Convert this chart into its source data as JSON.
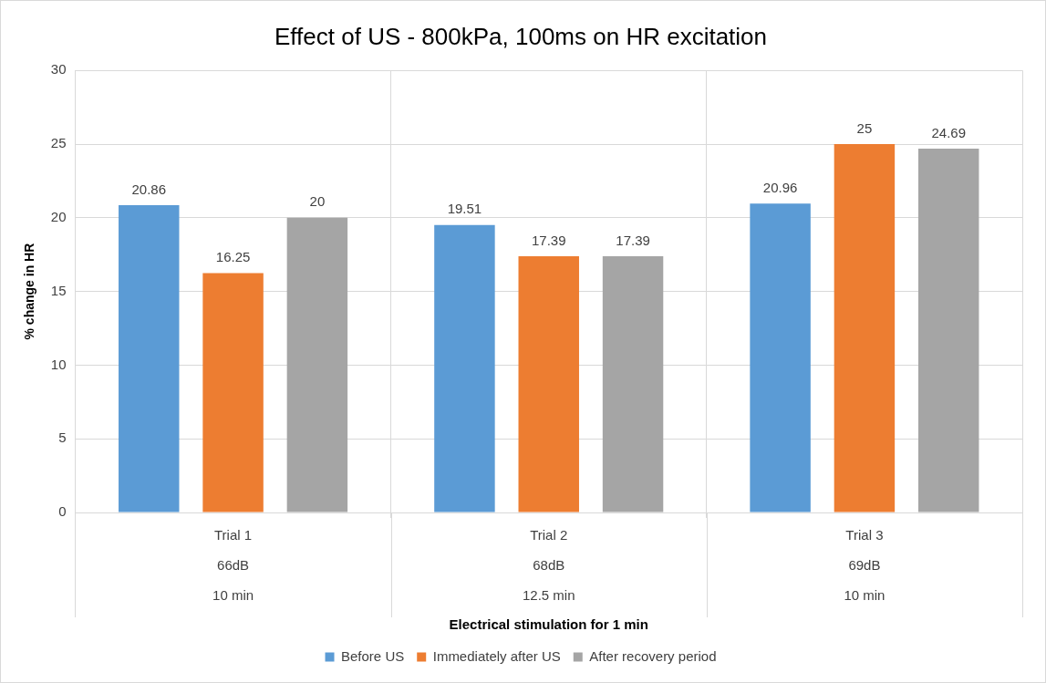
{
  "chart_data": {
    "type": "bar",
    "title": "Effect of US - 800kPa, 100ms on HR excitation",
    "xlabel": "Electrical stimulation for 1 min",
    "ylabel": "% change in HR",
    "categories": [
      "Trial 1\n66dB\n10 min",
      "Trial 2\n68dB\n12.5 min",
      "Trial 3\n69dB\n10 min"
    ],
    "series": [
      {
        "name": "Before US",
        "color": "#5b9bd5",
        "values": [
          20.86,
          19.51,
          20.96
        ]
      },
      {
        "name": "Immediately after US",
        "color": "#ed7d31",
        "values": [
          16.25,
          17.39,
          25
        ]
      },
      {
        "name": "After recovery period",
        "color": "#a5a5a5",
        "values": [
          20,
          17.39,
          24.69
        ]
      }
    ],
    "ylim": [
      0,
      30
    ],
    "yticks": [
      0,
      5,
      10,
      15,
      20,
      25,
      30
    ],
    "grid": true,
    "legend": "bottom",
    "data_labels": true
  }
}
